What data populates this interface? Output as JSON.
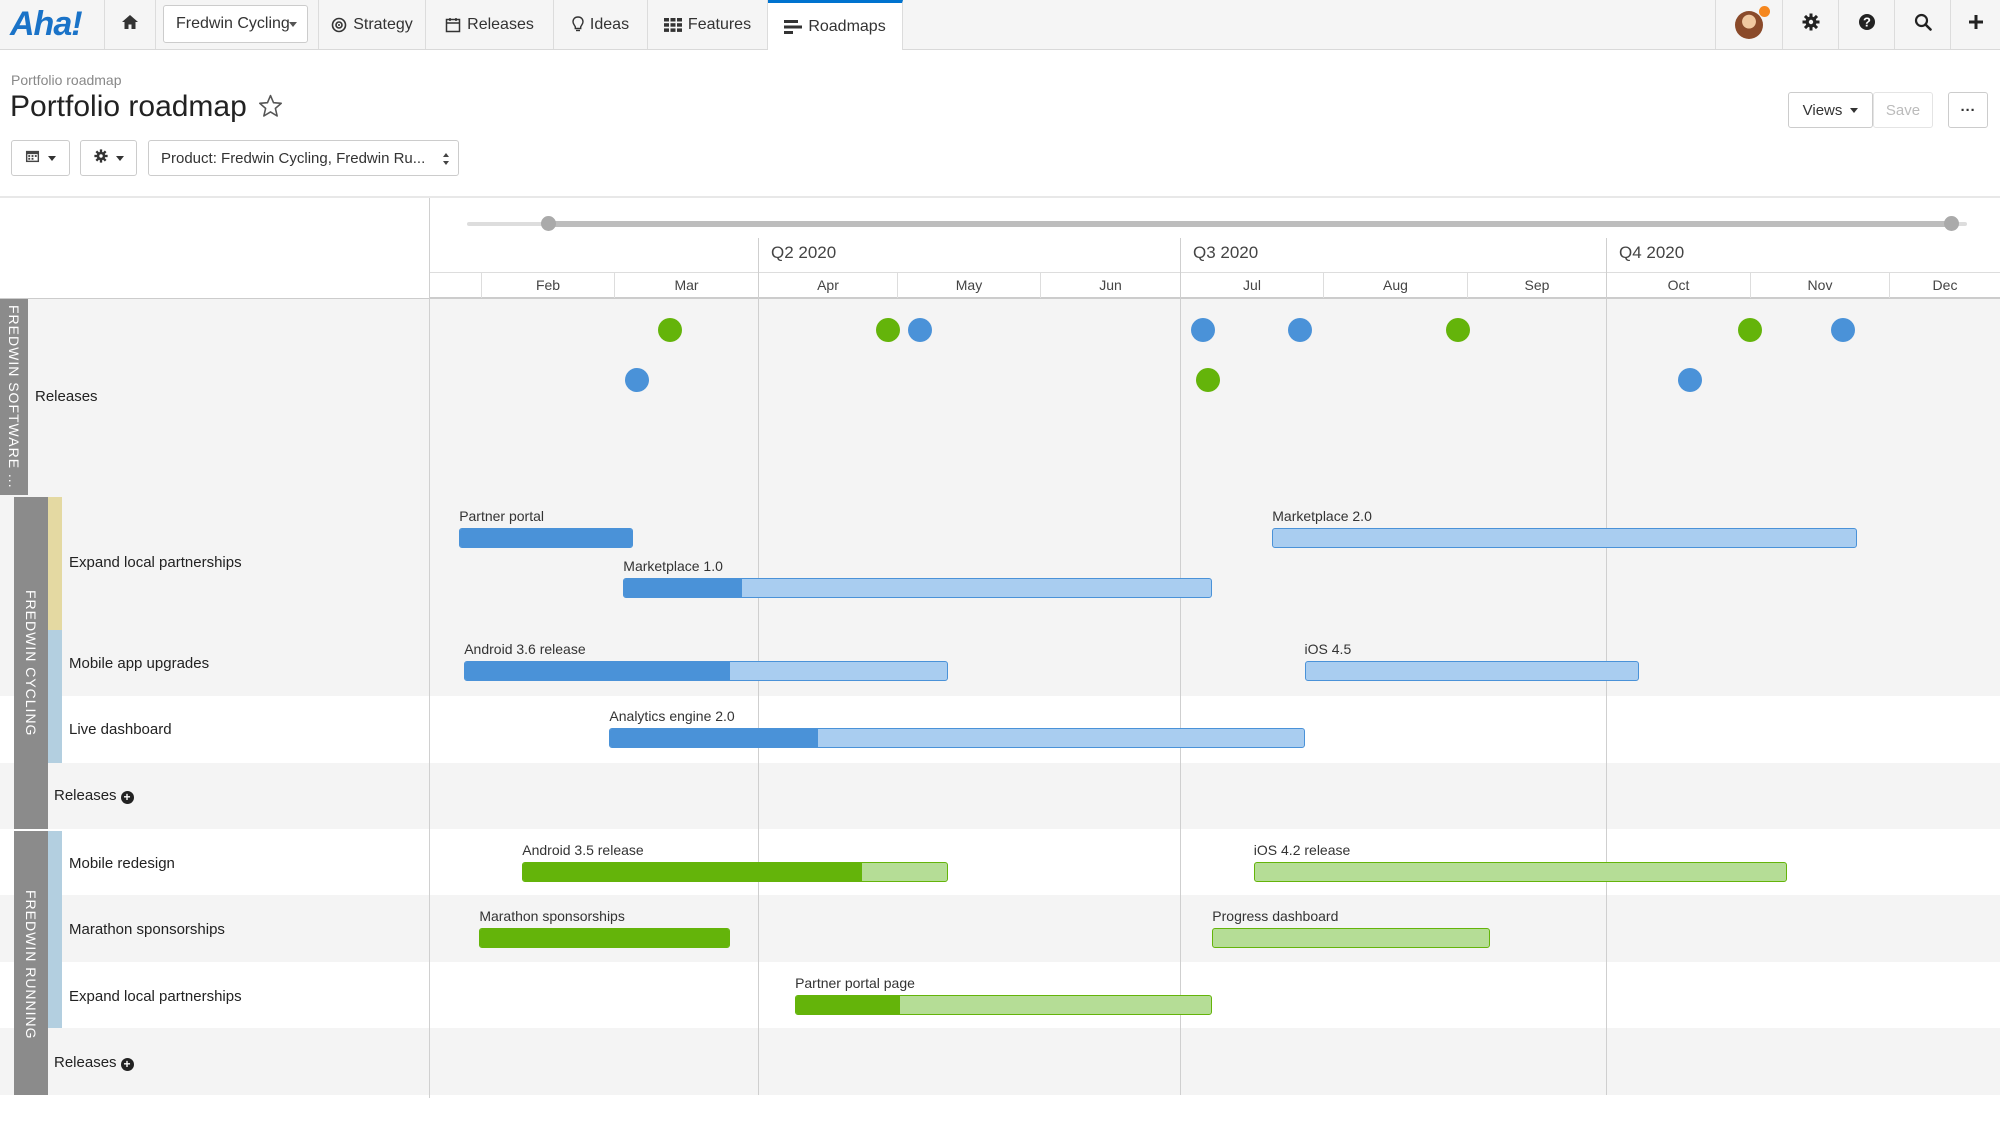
{
  "app": {
    "logo": "Aha!"
  },
  "nav": {
    "product_select": "Fredwin Cycling",
    "items": [
      {
        "label": "Strategy",
        "icon": "target-icon"
      },
      {
        "label": "Releases",
        "icon": "calendar-icon"
      },
      {
        "label": "Ideas",
        "icon": "lightbulb-icon"
      },
      {
        "label": "Features",
        "icon": "grid-icon"
      },
      {
        "label": "Roadmaps",
        "icon": "roadmap-icon",
        "active": true
      }
    ],
    "notification_color": "#f5871f"
  },
  "page": {
    "breadcrumb": "Portfolio roadmap",
    "title": "Portfolio roadmap",
    "views_label": "Views",
    "save_label": "Save",
    "more_label": "···",
    "filter_label": "Product: Fredwin Cycling, Fredwin Ru..."
  },
  "timeline": {
    "quarters": [
      "Q2 2020",
      "Q3 2020",
      "Q4 2020"
    ],
    "months": [
      "Feb",
      "Mar",
      "Apr",
      "May",
      "Jun",
      "Jul",
      "Aug",
      "Sep",
      "Oct",
      "Nov",
      "Dec"
    ]
  },
  "colors": {
    "blue": "#4a92d8",
    "blue_light": "#a9cdf0",
    "green": "#64b40a",
    "green_light": "#b5dd96",
    "group_gray": "#8b8b8b"
  },
  "groups": {
    "software": "FREDWIN SOFTWARE ...",
    "cycling": "FREDWIN CYCLING",
    "running": "FREDWIN RUNNING"
  },
  "rows": {
    "software_releases": "Releases",
    "cycling": [
      "Expand local partnerships",
      "Mobile app upgrades",
      "Live dashboard"
    ],
    "cycling_releases": "Releases",
    "running": [
      "Mobile redesign",
      "Marathon sponsorships",
      "Expand local partnerships"
    ],
    "running_releases": "Releases"
  },
  "release_dots": [
    {
      "color": "green",
      "date": "2020-03-13",
      "lane": 1
    },
    {
      "color": "blue",
      "date": "2020-03-06",
      "lane": 2
    },
    {
      "color": "green",
      "date": "2020-04-29",
      "lane": 1
    },
    {
      "color": "blue",
      "date": "2020-05-06",
      "lane": 1
    },
    {
      "color": "blue",
      "date": "2020-07-06",
      "lane": 1
    },
    {
      "color": "green",
      "date": "2020-07-07",
      "lane": 2
    },
    {
      "color": "blue",
      "date": "2020-07-27",
      "lane": 1
    },
    {
      "color": "green",
      "date": "2020-08-30",
      "lane": 1
    },
    {
      "color": "blue",
      "date": "2020-10-19",
      "lane": 2
    },
    {
      "color": "green",
      "date": "2020-11-01",
      "lane": 1
    },
    {
      "color": "blue",
      "date": "2020-11-21",
      "lane": 1
    }
  ],
  "bars": [
    {
      "label": "Partner portal",
      "start": "2020-01-19",
      "end": "2020-03-05",
      "progress": 1.0,
      "color": "blue"
    },
    {
      "label": "Marketplace 2.0",
      "start": "2020-07-21",
      "end": "2020-11-24",
      "progress": 0.0,
      "color": "blue"
    },
    {
      "label": "Marketplace 1.0",
      "start": "2020-03-03",
      "end": "2020-07-08",
      "progress": 0.2,
      "color": "blue"
    },
    {
      "label": "Android 3.6 release",
      "start": "2020-01-22",
      "end": "2020-05-12",
      "progress": 0.55,
      "color": "blue"
    },
    {
      "label": "iOS 4.5",
      "start": "2020-07-28",
      "end": "2020-10-08",
      "progress": 0.0,
      "color": "blue"
    },
    {
      "label": "Analytics engine 2.0",
      "start": "2020-02-29",
      "end": "2020-07-28",
      "progress": 0.3,
      "color": "blue"
    },
    {
      "label": "Android 3.5 release",
      "start": "2020-02-10",
      "end": "2020-05-12",
      "progress": 0.8,
      "color": "green"
    },
    {
      "label": "iOS 4.2 release",
      "start": "2020-07-17",
      "end": "2020-11-09",
      "progress": 0.0,
      "color": "green"
    },
    {
      "label": "Marathon sponsorships",
      "start": "2020-01-31",
      "end": "2020-03-26",
      "progress": 1.0,
      "color": "green"
    },
    {
      "label": "Progress dashboard",
      "start": "2020-07-08",
      "end": "2020-09-06",
      "progress": 0.0,
      "color": "green"
    },
    {
      "label": "Partner portal page",
      "start": "2020-04-09",
      "end": "2020-07-08",
      "progress": 0.25,
      "color": "green"
    }
  ]
}
